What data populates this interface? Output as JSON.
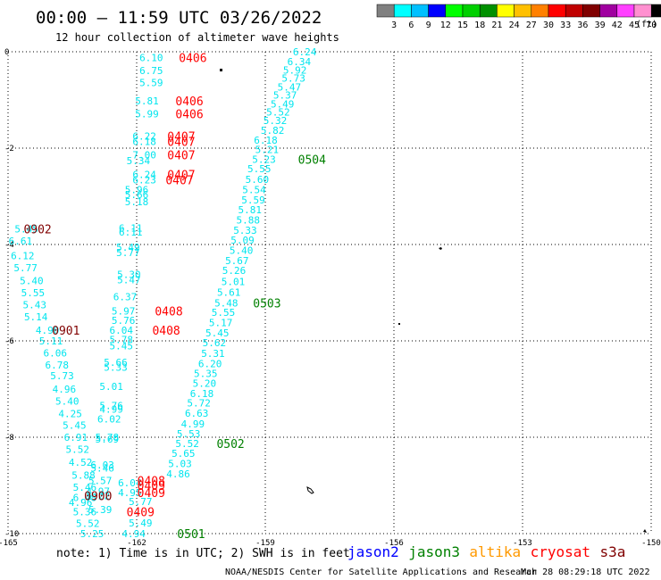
{
  "header": {
    "title": "00:00 – 11:59 UTC 03/26/2022",
    "subtitle": "12 hour collection of altimeter wave heights"
  },
  "color_legend": {
    "colors": [
      "#808080",
      "#00ffff",
      "#00c0ff",
      "#0000ff",
      "#00ff00",
      "#00d000",
      "#009000",
      "#ffff00",
      "#ffc000",
      "#ff8000",
      "#ff0000",
      "#c00000",
      "#800000",
      "#a000a0",
      "#ff40ff",
      "#ff90d0",
      "#000000"
    ],
    "labels": [
      "3",
      "6",
      "9",
      "12",
      "15",
      "18",
      "21",
      "24",
      "27",
      "30",
      "33",
      "36",
      "39",
      "42",
      "45",
      "70"
    ],
    "unit": "(ft)"
  },
  "footer": {
    "note": "note: 1) Time is in UTC; 2) SWH is in feet",
    "satellites": [
      {
        "name": "jason2",
        "color": "#0000ff"
      },
      {
        "name": "jason3",
        "color": "#008000"
      },
      {
        "name": "altika",
        "color": "#ff9900"
      },
      {
        "name": "cryosat",
        "color": "#ff0000"
      },
      {
        "name": "s3a",
        "color": "#800000"
      }
    ],
    "credit": "NOAA/NESDIS Center for Satellite Applications and Research",
    "timestamp": "Mar 28 08:29:18 UTC 2022"
  },
  "chart_data": {
    "type": "scatter",
    "xlim": [
      -165,
      -150
    ],
    "ylim": [
      -10,
      0
    ],
    "x_ticks": [
      "-165",
      "-162",
      "-159",
      "-156",
      "-153",
      "-150"
    ],
    "y_ticks": [
      "0",
      "-2",
      "-4",
      "-6",
      "-8",
      "-10"
    ],
    "grid": true,
    "series": [
      {
        "label_color": "#00e5ee",
        "points": [
          {
            "x": -161.66,
            "y": -0.12,
            "v": "6.10"
          },
          {
            "x": -161.66,
            "y": -0.39,
            "v": "6.75"
          },
          {
            "x": -161.66,
            "y": -0.64,
            "v": "5.59"
          },
          {
            "x": -161.76,
            "y": -1.02,
            "v": "5.81"
          },
          {
            "x": -161.76,
            "y": -1.29,
            "v": "5.99"
          },
          {
            "x": -161.82,
            "y": -1.75,
            "v": "6.22"
          },
          {
            "x": -161.82,
            "y": -1.86,
            "v": "6.18"
          },
          {
            "x": -161.82,
            "y": -2.14,
            "v": "7.00"
          },
          {
            "x": -161.96,
            "y": -2.26,
            "v": "5.34"
          },
          {
            "x": -161.82,
            "y": -2.55,
            "v": "6.24"
          },
          {
            "x": -161.82,
            "y": -2.66,
            "v": "6.23"
          },
          {
            "x": -162.0,
            "y": -2.86,
            "v": "5.96"
          },
          {
            "x": -162.0,
            "y": -2.96,
            "v": "5.66"
          },
          {
            "x": -162.0,
            "y": -3.11,
            "v": "5.18"
          },
          {
            "x": -162.14,
            "y": -3.66,
            "v": "6.11"
          },
          {
            "x": -162.14,
            "y": -3.74,
            "v": "6.11"
          },
          {
            "x": -162.2,
            "y": -4.06,
            "v": "5.49"
          },
          {
            "x": -162.2,
            "y": -4.17,
            "v": "5.77"
          },
          {
            "x": -162.18,
            "y": -4.62,
            "v": "5.30"
          },
          {
            "x": -162.18,
            "y": -4.73,
            "v": "5.47"
          },
          {
            "x": -162.27,
            "y": -5.08,
            "v": "6.37"
          },
          {
            "x": -162.31,
            "y": -5.38,
            "v": "5.97"
          },
          {
            "x": -162.31,
            "y": -5.57,
            "v": "5.76"
          },
          {
            "x": -162.36,
            "y": -5.78,
            "v": "6.04"
          },
          {
            "x": -162.36,
            "y": -5.97,
            "v": "5.78"
          },
          {
            "x": -162.36,
            "y": -6.1,
            "v": "5.45"
          },
          {
            "x": -162.49,
            "y": -6.44,
            "v": "5.66"
          },
          {
            "x": -162.49,
            "y": -6.55,
            "v": "5.33"
          },
          {
            "x": -162.59,
            "y": -6.94,
            "v": "5.01"
          },
          {
            "x": -162.59,
            "y": -7.34,
            "v": "5.76"
          },
          {
            "x": -162.59,
            "y": -7.42,
            "v": "4.99"
          },
          {
            "x": -162.64,
            "y": -7.62,
            "v": "6.02"
          },
          {
            "x": -162.69,
            "y": -8.0,
            "v": "5.78"
          },
          {
            "x": -162.69,
            "y": -8.04,
            "v": "5.69"
          },
          {
            "x": -162.8,
            "y": -8.57,
            "v": "6.03"
          },
          {
            "x": -162.8,
            "y": -8.64,
            "v": "5.46"
          },
          {
            "x": -162.85,
            "y": -8.9,
            "v": "5.57"
          },
          {
            "x": -162.9,
            "y": -9.12,
            "v": "4.97"
          },
          {
            "x": -162.9,
            "y": -9.21,
            "v": "5.22"
          },
          {
            "x": -162.85,
            "y": -9.5,
            "v": "5.39"
          },
          {
            "x": -162.16,
            "y": -8.94,
            "v": "6.04"
          },
          {
            "x": -162.16,
            "y": -9.15,
            "v": "4.95"
          },
          {
            "x": -161.91,
            "y": -9.33,
            "v": "5.77"
          },
          {
            "x": -161.91,
            "y": -9.78,
            "v": "5.49"
          },
          {
            "x": -162.07,
            "y": -10.0,
            "v": "4.94"
          },
          {
            "x": -158.08,
            "y": 0.0,
            "v": "6.24"
          },
          {
            "x": -158.21,
            "y": -0.2,
            "v": "6.34"
          },
          {
            "x": -158.31,
            "y": -0.38,
            "v": "5.92"
          },
          {
            "x": -158.34,
            "y": -0.55,
            "v": "5.73"
          },
          {
            "x": -158.44,
            "y": -0.73,
            "v": "5.47"
          },
          {
            "x": -158.54,
            "y": -0.9,
            "v": "5.37"
          },
          {
            "x": -158.6,
            "y": -1.08,
            "v": "5.49"
          },
          {
            "x": -158.7,
            "y": -1.25,
            "v": "5.52"
          },
          {
            "x": -158.77,
            "y": -1.43,
            "v": "5.32"
          },
          {
            "x": -158.83,
            "y": -1.63,
            "v": "5.82"
          },
          {
            "x": -158.99,
            "y": -1.83,
            "v": "6.18"
          },
          {
            "x": -158.96,
            "y": -2.03,
            "v": "5.21"
          },
          {
            "x": -159.03,
            "y": -2.23,
            "v": "5.23"
          },
          {
            "x": -159.14,
            "y": -2.43,
            "v": "5.55"
          },
          {
            "x": -159.19,
            "y": -2.65,
            "v": "5.60"
          },
          {
            "x": -159.26,
            "y": -2.86,
            "v": "5.54"
          },
          {
            "x": -159.28,
            "y": -3.07,
            "v": "5.59"
          },
          {
            "x": -159.36,
            "y": -3.28,
            "v": "5.81"
          },
          {
            "x": -159.4,
            "y": -3.49,
            "v": "5.88"
          },
          {
            "x": -159.47,
            "y": -3.7,
            "v": "5.33"
          },
          {
            "x": -159.53,
            "y": -3.91,
            "v": "5.09"
          },
          {
            "x": -159.56,
            "y": -4.12,
            "v": "5.40"
          },
          {
            "x": -159.66,
            "y": -4.33,
            "v": "5.67"
          },
          {
            "x": -159.73,
            "y": -4.54,
            "v": "5.26"
          },
          {
            "x": -159.75,
            "y": -4.77,
            "v": "5.01"
          },
          {
            "x": -159.85,
            "y": -4.99,
            "v": "5.61"
          },
          {
            "x": -159.91,
            "y": -5.21,
            "v": "5.48"
          },
          {
            "x": -159.98,
            "y": -5.41,
            "v": "5.55"
          },
          {
            "x": -160.04,
            "y": -5.62,
            "v": "5.17"
          },
          {
            "x": -160.12,
            "y": -5.83,
            "v": "5.45"
          },
          {
            "x": -160.19,
            "y": -6.04,
            "v": "5.62"
          },
          {
            "x": -160.22,
            "y": -6.26,
            "v": "5.31"
          },
          {
            "x": -160.29,
            "y": -6.47,
            "v": "6.20"
          },
          {
            "x": -160.39,
            "y": -6.68,
            "v": "5.35"
          },
          {
            "x": -160.42,
            "y": -6.88,
            "v": "5.20"
          },
          {
            "x": -160.48,
            "y": -7.09,
            "v": "6.18"
          },
          {
            "x": -160.55,
            "y": -7.29,
            "v": "5.72"
          },
          {
            "x": -160.6,
            "y": -7.5,
            "v": "6.63"
          },
          {
            "x": -160.69,
            "y": -7.72,
            "v": "4.99"
          },
          {
            "x": -160.79,
            "y": -7.93,
            "v": "5.53"
          },
          {
            "x": -160.82,
            "y": -8.13,
            "v": "5.52"
          },
          {
            "x": -160.91,
            "y": -8.33,
            "v": "5.65"
          },
          {
            "x": -160.99,
            "y": -8.55,
            "v": "5.03"
          },
          {
            "x": -161.03,
            "y": -8.76,
            "v": "4.86"
          },
          {
            "x": -164.57,
            "y": -3.68,
            "v": "5.45"
          },
          {
            "x": -164.71,
            "y": -3.93,
            "v": "6.61"
          },
          {
            "x": -164.66,
            "y": -4.23,
            "v": "6.12"
          },
          {
            "x": -164.59,
            "y": -4.48,
            "v": "5.77"
          },
          {
            "x": -164.45,
            "y": -4.75,
            "v": "5.40"
          },
          {
            "x": -164.42,
            "y": -5.0,
            "v": "5.55"
          },
          {
            "x": -164.38,
            "y": -5.25,
            "v": "5.43"
          },
          {
            "x": -164.35,
            "y": -5.5,
            "v": "5.14"
          },
          {
            "x": -164.08,
            "y": -5.78,
            "v": "4.90"
          },
          {
            "x": -164.0,
            "y": -6.0,
            "v": "5.11"
          },
          {
            "x": -163.9,
            "y": -6.25,
            "v": "6.06"
          },
          {
            "x": -163.86,
            "y": -6.5,
            "v": "6.78"
          },
          {
            "x": -163.74,
            "y": -6.72,
            "v": "5.73"
          },
          {
            "x": -163.69,
            "y": -7.0,
            "v": "4.96"
          },
          {
            "x": -163.62,
            "y": -7.25,
            "v": "5.40"
          },
          {
            "x": -163.55,
            "y": -7.51,
            "v": "4.25"
          },
          {
            "x": -163.45,
            "y": -7.75,
            "v": "5.45"
          },
          {
            "x": -163.42,
            "y": -8.0,
            "v": "6.91"
          },
          {
            "x": -163.38,
            "y": -8.25,
            "v": "5.52"
          },
          {
            "x": -163.31,
            "y": -8.52,
            "v": "4.52"
          },
          {
            "x": -163.24,
            "y": -8.79,
            "v": "5.88"
          },
          {
            "x": -163.21,
            "y": -9.04,
            "v": "5.46"
          },
          {
            "x": -163.21,
            "y": -9.25,
            "v": "6.48"
          },
          {
            "x": -163.31,
            "y": -9.35,
            "v": "4.96"
          },
          {
            "x": -163.21,
            "y": -9.55,
            "v": "5.36"
          },
          {
            "x": -163.14,
            "y": -9.79,
            "v": "5.52"
          },
          {
            "x": -163.04,
            "y": -10.0,
            "v": "5.25"
          }
        ]
      }
    ],
    "time_labels": [
      {
        "x": -160.69,
        "y": -0.12,
        "t": "0406",
        "c": "#ff0000"
      },
      {
        "x": -160.77,
        "y": -1.02,
        "t": "0406",
        "c": "#ff0000"
      },
      {
        "x": -160.77,
        "y": -1.29,
        "t": "0406",
        "c": "#ff0000"
      },
      {
        "x": -160.96,
        "y": -1.75,
        "t": "0407",
        "c": "#ff0000"
      },
      {
        "x": -160.96,
        "y": -1.86,
        "t": "0407",
        "c": "#ff0000"
      },
      {
        "x": -160.96,
        "y": -2.14,
        "t": "0407",
        "c": "#ff0000"
      },
      {
        "x": -160.96,
        "y": -2.55,
        "t": "0407",
        "c": "#ff0000"
      },
      {
        "x": -161.0,
        "y": -2.66,
        "t": "0407",
        "c": "#ff0000"
      },
      {
        "x": -161.25,
        "y": -5.38,
        "t": "0408",
        "c": "#ff0000"
      },
      {
        "x": -161.31,
        "y": -5.78,
        "t": "0408",
        "c": "#ff0000"
      },
      {
        "x": -161.66,
        "y": -8.9,
        "t": "0408",
        "c": "#ff0000"
      },
      {
        "x": -161.66,
        "y": -9.0,
        "t": "0409",
        "c": "#ff0000"
      },
      {
        "x": -161.66,
        "y": -9.15,
        "t": "0409",
        "c": "#ff0000"
      },
      {
        "x": -161.91,
        "y": -9.55,
        "t": "0409",
        "c": "#ff0000"
      },
      {
        "x": -164.31,
        "y": -3.68,
        "t": "0902",
        "c": "#800000"
      },
      {
        "x": -163.65,
        "y": -5.78,
        "t": "0901",
        "c": "#800000"
      },
      {
        "x": -162.9,
        "y": -9.21,
        "t": "0900",
        "c": "#800000"
      },
      {
        "x": -157.91,
        "y": -2.23,
        "t": "0504",
        "c": "#008000"
      },
      {
        "x": -158.96,
        "y": -5.21,
        "t": "0503",
        "c": "#008000"
      },
      {
        "x": -159.81,
        "y": -8.13,
        "t": "0502",
        "c": "#008000"
      },
      {
        "x": -160.73,
        "y": -10.0,
        "t": "0501",
        "c": "#008000"
      }
    ]
  }
}
